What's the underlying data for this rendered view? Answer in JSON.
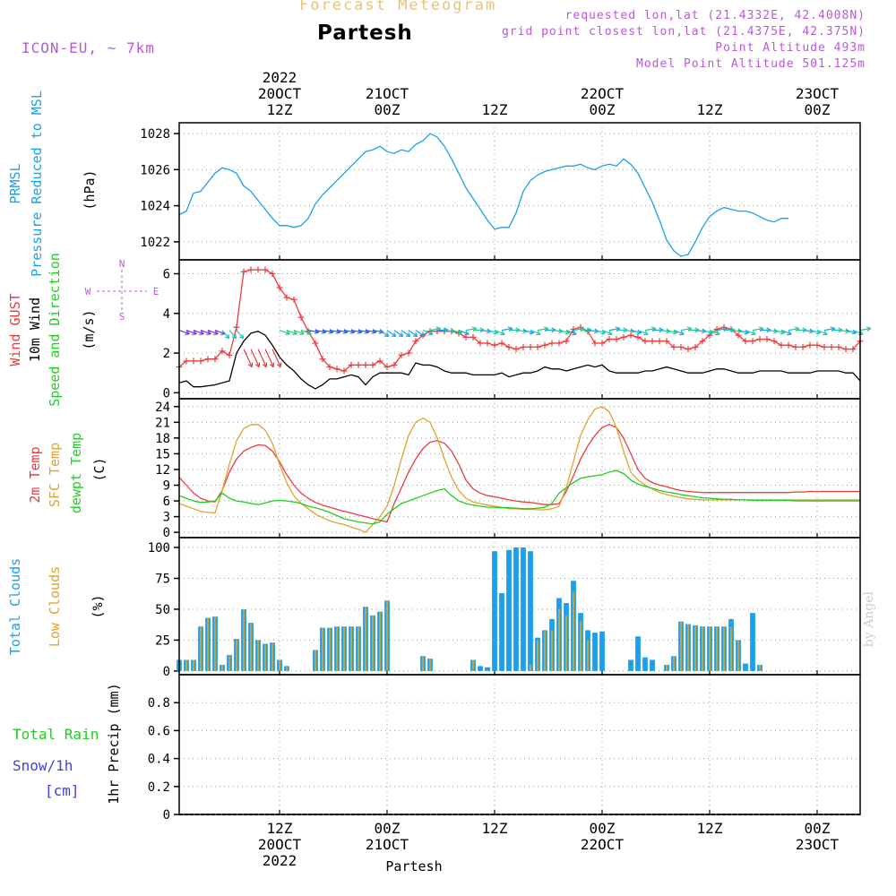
{
  "header": {
    "title": "Forecast Meteogram",
    "location": "Partesh",
    "model": "ICON-EU, ~ 7km",
    "requested": "requested lon,lat (21.4332E, 42.4008N)",
    "grid": "grid point closest lon,lat (21.4375E, 42.375N)",
    "point_alt": "Point Altitude 493m",
    "model_alt": "Model Point Altitude 501.125m",
    "signature": "by Angel",
    "footer": "Partesh"
  },
  "colors": {
    "blue": "#1aa0ec",
    "red": "#ee3b3b",
    "orange": "#e1a32c",
    "green": "#1fcf1f",
    "black": "#000000",
    "purple": "#b85ad8",
    "snow": "#4040e0"
  },
  "chart_data": [
    {
      "type": "line",
      "id": "pressure",
      "ylabels": [
        "PRMSL",
        "Pressure Reduced to MSL",
        "(hPa)"
      ],
      "x_range": [
        0,
        95
      ],
      "ylim": [
        1021,
        1028.6
      ],
      "yticks": [
        1022,
        1024,
        1026,
        1028
      ],
      "series": [
        {
          "name": "PRMSL",
          "color": "#1aa0ec",
          "values": [
            1023.5,
            1023.7,
            1024.7,
            1024.8,
            1025.3,
            1025.8,
            1026.1,
            1026.0,
            1025.8,
            1025.1,
            1024.8,
            1024.3,
            1023.8,
            1023.3,
            1022.9,
            1022.9,
            1022.8,
            1022.9,
            1023.3,
            1024.1,
            1024.6,
            1025.0,
            1025.4,
            1025.8,
            1026.2,
            1026.6,
            1027.0,
            1027.1,
            1027.3,
            1027.0,
            1026.9,
            1027.1,
            1027.0,
            1027.4,
            1027.6,
            1028.0,
            1027.8,
            1027.3,
            1026.6,
            1025.8,
            1025.0,
            1024.4,
            1023.8,
            1023.2,
            1022.7,
            1022.8,
            1022.8,
            1023.6,
            1024.8,
            1025.4,
            1025.7,
            1025.9,
            1026.0,
            1026.1,
            1026.2,
            1026.2,
            1026.3,
            1026.1,
            1026.0,
            1026.2,
            1026.3,
            1026.2,
            1026.6,
            1026.3,
            1025.8,
            1025.0,
            1024.2,
            1023.2,
            1022.1,
            1021.5,
            1021.2,
            1021.3,
            1022.0,
            1022.8,
            1023.4,
            1023.7,
            1023.9,
            1023.8,
            1023.7,
            1023.7,
            1023.6,
            1023.4,
            1023.2,
            1023.1,
            1023.3,
            1023.3
          ]
        }
      ]
    },
    {
      "type": "line",
      "id": "wind",
      "ylabels": [
        "Wind GUST",
        "10m Wind",
        "Speed and Direction",
        "(m/s)"
      ],
      "compass": [
        "N",
        "W",
        "E",
        "S"
      ],
      "x_range": [
        0,
        95
      ],
      "ylim": [
        -0.3,
        6.7
      ],
      "yticks": [
        0,
        2,
        4,
        6
      ],
      "series": [
        {
          "name": "Wind GUST",
          "color": "#ee3b3b",
          "values": [
            1.3,
            1.6,
            1.6,
            1.6,
            1.7,
            1.7,
            2.1,
            1.9,
            3.3,
            6.1,
            6.2,
            6.2,
            6.2,
            6.0,
            5.3,
            4.8,
            4.7,
            3.8,
            3.1,
            2.5,
            1.7,
            1.3,
            1.2,
            1.1,
            1.4,
            1.4,
            1.4,
            1.4,
            1.6,
            1.3,
            1.4,
            1.9,
            2.0,
            2.6,
            2.9,
            3.1,
            3.1,
            3.1,
            3.1,
            3.0,
            2.8,
            2.8,
            2.5,
            2.5,
            2.4,
            2.5,
            2.3,
            2.2,
            2.3,
            2.3,
            2.3,
            2.4,
            2.5,
            2.5,
            2.6,
            3.2,
            3.3,
            3.1,
            2.5,
            2.5,
            2.7,
            2.7,
            2.8,
            2.9,
            2.8,
            2.6,
            2.6,
            2.6,
            2.6,
            2.3,
            2.3,
            2.2,
            2.3,
            2.6,
            2.9,
            3.2,
            3.3,
            3.2,
            2.9,
            2.6,
            2.6,
            2.7,
            2.7,
            2.6,
            2.4,
            2.4,
            2.3,
            2.3,
            2.4,
            2.4,
            2.3,
            2.3,
            2.3,
            2.2,
            2.2,
            2.6
          ]
        },
        {
          "name": "10m Wind",
          "color": "#000000",
          "values": [
            0.5,
            0.6,
            0.3,
            0.3,
            0.35,
            0.4,
            0.5,
            0.6,
            2.0,
            2.6,
            3.0,
            3.1,
            2.9,
            2.4,
            1.8,
            1.4,
            1.1,
            0.7,
            0.4,
            0.2,
            0.4,
            0.7,
            0.7,
            0.8,
            0.9,
            0.8,
            0.4,
            0.8,
            1.0,
            1.0,
            1.0,
            1.0,
            0.9,
            1.5,
            1.4,
            1.4,
            1.3,
            1.1,
            1.0,
            1.0,
            1.0,
            0.9,
            0.9,
            0.9,
            0.9,
            1.0,
            0.8,
            0.9,
            1.0,
            1.0,
            1.1,
            1.3,
            1.2,
            1.2,
            1.1,
            1.2,
            1.3,
            1.4,
            1.3,
            1.4,
            1.1,
            1.0,
            1.0,
            1.0,
            1.0,
            1.1,
            1.1,
            1.2,
            1.3,
            1.2,
            1.1,
            1.0,
            1.0,
            1.0,
            1.1,
            1.2,
            1.2,
            1.1,
            1.0,
            1.0,
            1.0,
            1.1,
            1.1,
            1.1,
            1.1,
            1.0,
            1.0,
            1.0,
            1.0,
            1.1,
            1.1,
            1.1,
            1.1,
            1.0,
            1.0,
            0.6
          ]
        }
      ]
    },
    {
      "type": "line",
      "id": "temperature",
      "ylabels": [
        "2m Temp",
        "SFC Temp",
        "dewpt Temp",
        "(C)"
      ],
      "x_range": [
        0,
        95
      ],
      "ylim": [
        -1,
        25.5
      ],
      "yticks": [
        0,
        3,
        6,
        9,
        12,
        15,
        18,
        21,
        24
      ],
      "series": [
        {
          "name": "2m Temp",
          "color": "#ee3b3b",
          "values": [
            10.5,
            9.0,
            7.5,
            6.5,
            6.0,
            5.8,
            8.0,
            11.5,
            14.0,
            15.5,
            16.2,
            16.7,
            16.6,
            15.5,
            13.5,
            11.0,
            9.0,
            7.5,
            6.5,
            5.7,
            5.2,
            4.8,
            4.4,
            4.0,
            3.7,
            3.3,
            3.0,
            2.6,
            2.3,
            2.0,
            5.5,
            8.5,
            11.5,
            14.0,
            16.0,
            17.2,
            17.5,
            17.0,
            15.5,
            13.0,
            10.0,
            8.3,
            7.5,
            7.0,
            6.8,
            6.5,
            6.2,
            6.0,
            5.8,
            5.7,
            5.5,
            5.3,
            5.3,
            5.5,
            7.8,
            10.8,
            14.0,
            16.5,
            18.5,
            20.0,
            20.6,
            20.0,
            18.0,
            15.0,
            12.0,
            10.3,
            9.5,
            9.0,
            8.7,
            8.3,
            8.0,
            7.8,
            7.7,
            7.6,
            7.6,
            7.6,
            7.6,
            7.6,
            7.6,
            7.6,
            7.6,
            7.6,
            7.6,
            7.6,
            7.6,
            7.6,
            7.7,
            7.7,
            7.8,
            7.8,
            7.8,
            7.8,
            7.8,
            7.8,
            7.8,
            7.8
          ]
        },
        {
          "name": "SFC Temp",
          "color": "#e1a32c",
          "values": [
            5.5,
            5.0,
            4.5,
            4.0,
            3.8,
            3.7,
            8.0,
            13.0,
            17.5,
            19.8,
            20.5,
            20.6,
            19.5,
            17.0,
            13.0,
            9.5,
            7.0,
            5.5,
            4.5,
            3.5,
            2.8,
            2.2,
            1.8,
            1.5,
            1.0,
            0.6,
            0.0,
            1.5,
            3.0,
            5.0,
            9.0,
            14.0,
            18.5,
            21.0,
            21.8,
            21.0,
            18.0,
            14.0,
            10.5,
            8.0,
            6.5,
            5.8,
            5.5,
            5.2,
            5.0,
            4.8,
            4.5,
            4.5,
            4.4,
            4.4,
            4.3,
            4.3,
            4.5,
            5.0,
            8.5,
            13.5,
            18.5,
            21.5,
            23.5,
            24.0,
            23.0,
            20.0,
            15.5,
            11.5,
            10.0,
            9.0,
            8.3,
            7.6,
            7.2,
            6.9,
            6.6,
            6.4,
            6.3,
            6.2,
            6.2,
            6.2,
            6.2,
            6.2,
            6.2,
            6.2,
            6.2,
            6.2,
            6.2,
            6.2,
            6.2,
            6.2,
            6.2,
            6.2,
            6.2,
            6.2,
            6.2,
            6.2,
            6.2,
            6.2,
            6.2,
            6.2
          ]
        },
        {
          "name": "dewpt Temp",
          "color": "#1fcf1f",
          "values": [
            7.0,
            6.5,
            6.0,
            5.7,
            5.8,
            6.0,
            7.5,
            6.5,
            6.0,
            5.8,
            5.5,
            5.3,
            5.6,
            6.0,
            6.1,
            6.0,
            5.8,
            5.5,
            5.0,
            4.7,
            4.3,
            3.8,
            3.2,
            2.6,
            2.3,
            2.0,
            1.8,
            1.6,
            2.0,
            3.5,
            4.5,
            5.5,
            6.0,
            6.5,
            7.0,
            7.5,
            8.0,
            8.3,
            7.0,
            6.0,
            5.5,
            5.2,
            5.0,
            4.8,
            4.8,
            4.7,
            4.7,
            4.6,
            4.5,
            4.5,
            4.6,
            4.8,
            5.5,
            7.5,
            8.5,
            9.5,
            10.3,
            10.6,
            10.8,
            11.0,
            11.5,
            11.8,
            11.2,
            10.0,
            9.2,
            8.8,
            8.4,
            8.0,
            7.7,
            7.5,
            7.2,
            7.0,
            6.8,
            6.6,
            6.5,
            6.4,
            6.3,
            6.3,
            6.2,
            6.2,
            6.1,
            6.1,
            6.1,
            6.1,
            6.1,
            6.1,
            6.0,
            6.0,
            6.0,
            6.0,
            6.0,
            6.0,
            6.0,
            6.0,
            6.0,
            6.0
          ]
        }
      ]
    },
    {
      "type": "bar",
      "id": "clouds",
      "ylabels": [
        "Total Clouds",
        "Low Clouds",
        "(%)"
      ],
      "x_range": [
        0,
        95
      ],
      "ylim": [
        -3,
        108
      ],
      "yticks": [
        0,
        25,
        50,
        75,
        100
      ],
      "series": [
        {
          "name": "Total Clouds",
          "color": "#1aa0ec",
          "values": [
            9,
            9,
            9,
            36,
            43,
            44,
            5,
            13,
            26,
            50,
            39,
            25,
            22,
            23,
            9,
            4,
            0,
            0,
            0,
            17,
            35,
            35,
            36,
            36,
            36,
            36,
            52,
            45,
            48,
            57,
            0,
            0,
            0,
            0,
            12,
            10,
            0,
            0,
            0,
            0,
            0,
            9,
            4,
            3,
            97,
            63,
            98,
            100,
            100,
            97,
            27,
            33,
            42,
            59,
            55,
            73,
            47,
            33,
            31,
            32,
            0,
            0,
            0,
            9,
            28,
            11,
            9,
            0,
            5,
            12,
            40,
            38,
            37,
            36,
            36,
            36,
            36,
            42,
            25,
            6,
            47,
            5,
            0,
            0,
            0,
            0,
            0,
            0,
            0,
            0,
            0,
            0,
            0,
            0,
            0,
            0
          ]
        },
        {
          "name": "Low Clouds",
          "color": "#e1a32c",
          "values": [
            9,
            9,
            9,
            36,
            43,
            44,
            5,
            13,
            26,
            50,
            39,
            25,
            22,
            23,
            9,
            4,
            0,
            0,
            0,
            17,
            35,
            35,
            36,
            36,
            36,
            36,
            52,
            45,
            48,
            57,
            0,
            0,
            0,
            0,
            12,
            10,
            0,
            0,
            0,
            0,
            0,
            9,
            0,
            0,
            0,
            0,
            0,
            0,
            0,
            5,
            25,
            33,
            33,
            50,
            45,
            64,
            40,
            25,
            0,
            0,
            0,
            0,
            0,
            0,
            0,
            0,
            0,
            0,
            5,
            12,
            40,
            38,
            37,
            36,
            36,
            36,
            36,
            36,
            25,
            0,
            0,
            5,
            0,
            0,
            0,
            0,
            0,
            0,
            0,
            0,
            0,
            0,
            0,
            0,
            0,
            0
          ]
        }
      ]
    },
    {
      "type": "bar",
      "id": "precip",
      "ylabels": [
        "1hr Precip (mm)"
      ],
      "legend": [
        "Total  Rain",
        "Snow/1h",
        "[cm]"
      ],
      "x_range": [
        0,
        95
      ],
      "ylim": [
        0,
        1.0
      ],
      "yticks": [
        0,
        0.2,
        0.4,
        0.6,
        0.8
      ],
      "series": [
        {
          "name": "Total Rain",
          "color": "#1fcf1f",
          "values": []
        }
      ]
    }
  ],
  "time_axis": {
    "top": [
      {
        "x": 14,
        "lines": [
          "2022",
          "20OCT",
          "12Z"
        ]
      },
      {
        "x": 29,
        "lines": [
          "21OCT",
          "00Z"
        ]
      },
      {
        "x": 44,
        "lines": [
          "12Z"
        ]
      },
      {
        "x": 59,
        "lines": [
          "22OCT",
          "00Z"
        ]
      },
      {
        "x": 74,
        "lines": [
          "12Z"
        ]
      },
      {
        "x": 89,
        "lines": [
          "23OCT",
          "00Z"
        ]
      }
    ],
    "bottom": [
      {
        "x": 14,
        "lines": [
          "12Z",
          "20OCT",
          "2022"
        ]
      },
      {
        "x": 29,
        "lines": [
          "00Z",
          "21OCT"
        ]
      },
      {
        "x": 44,
        "lines": [
          "12Z"
        ]
      },
      {
        "x": 59,
        "lines": [
          "00Z",
          "22OCT"
        ]
      },
      {
        "x": 74,
        "lines": [
          "12Z"
        ]
      },
      {
        "x": 89,
        "lines": [
          "00Z",
          "23OCT"
        ]
      }
    ]
  }
}
